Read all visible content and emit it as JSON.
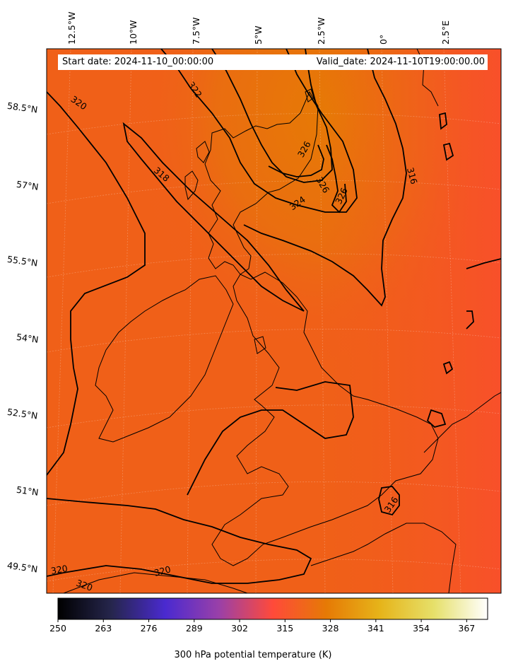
{
  "header": {
    "start_date": "Start date: 2024-11-10_00:00:00",
    "valid_date": "Valid_date: 2024-11-10T19:00:00.00"
  },
  "longitude_labels": [
    "12.5°W",
    "10°W",
    "7.5°W",
    "5°W",
    "2.5°W",
    "0°",
    "2.5°E"
  ],
  "latitude_labels": [
    "58.5°N",
    "57°N",
    "55.5°N",
    "54°N",
    "52.5°N",
    "51°N",
    "49.5°N"
  ],
  "contour_labels": [
    "320",
    "322",
    "318",
    "326",
    "324",
    "326",
    "326",
    "316",
    "320",
    "320",
    "320",
    "316"
  ],
  "colorbar": {
    "ticks": [
      "250",
      "263",
      "276",
      "289",
      "302",
      "315",
      "328",
      "341",
      "354",
      "367"
    ],
    "label": "300 hPa potential temperature (K)",
    "colormap": "CMRmap",
    "range": [
      250,
      373
    ]
  },
  "colors": {
    "field_dominant": "#f25a1e",
    "field_warm_core": "#e67a05",
    "contour": "#000000"
  }
}
